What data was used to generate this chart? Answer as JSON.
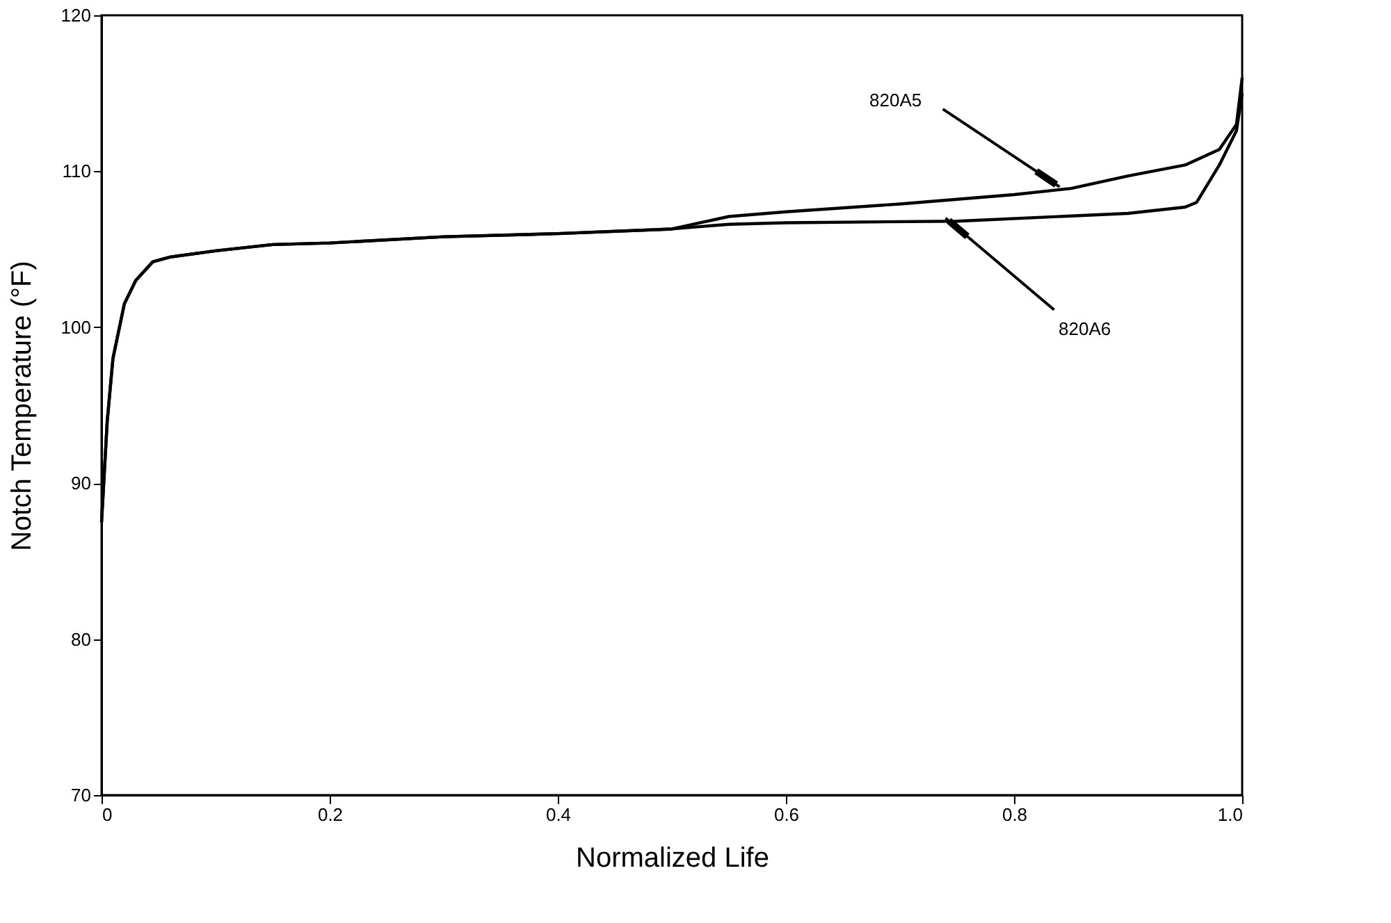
{
  "chart_data": {
    "type": "line",
    "xlabel": "Normalized Life",
    "ylabel": "Notch Temperature (°F)",
    "xlim": [
      0,
      1.0
    ],
    "xticks": [
      0,
      0.2,
      0.4,
      0.6,
      0.8,
      {
        "value": 1.0,
        "label": "1.0"
      }
    ],
    "ylim": [
      70,
      120
    ],
    "yticks": [
      70,
      80,
      90,
      100,
      110,
      120
    ],
    "grid": false,
    "marker": "none",
    "line_style": "solid",
    "series": [
      {
        "color": "#000000",
        "x": [
          0,
          0.005,
          0.01,
          0.02,
          0.03,
          0.045,
          0.06,
          0.1,
          0.15,
          0.2,
          0.3,
          0.4,
          0.5,
          0.55,
          0.6,
          0.7,
          0.8,
          0.85,
          0.9,
          0.95,
          0.98,
          0.995,
          1.0
        ],
        "values": [
          87.5,
          94,
          98,
          101.5,
          103,
          104.2,
          104.5,
          104.9,
          105.3,
          105.4,
          105.8,
          106,
          106.3,
          107.1,
          107.4,
          107.9,
          108.5,
          108.9,
          109.7,
          110.4,
          111.4,
          113,
          116
        ]
      },
      {
        "color": "#000000",
        "x": [
          0,
          0.005,
          0.01,
          0.02,
          0.03,
          0.045,
          0.06,
          0.1,
          0.15,
          0.2,
          0.3,
          0.4,
          0.5,
          0.55,
          0.6,
          0.75,
          0.9,
          0.95,
          0.96,
          0.98,
          0.995,
          1.0
        ],
        "values": [
          87.5,
          94,
          98,
          101.5,
          103,
          104.2,
          104.5,
          104.9,
          105.3,
          105.4,
          105.8,
          106,
          106.3,
          106.6,
          106.7,
          106.8,
          107.3,
          107.7,
          108,
          110.4,
          112.6,
          115
        ]
      }
    ],
    "annotations": [
      {
        "text": "820A5",
        "x": 0.84,
        "y": 109
      },
      {
        "text": "820A6",
        "x": 0.74,
        "y": 107
      }
    ]
  }
}
